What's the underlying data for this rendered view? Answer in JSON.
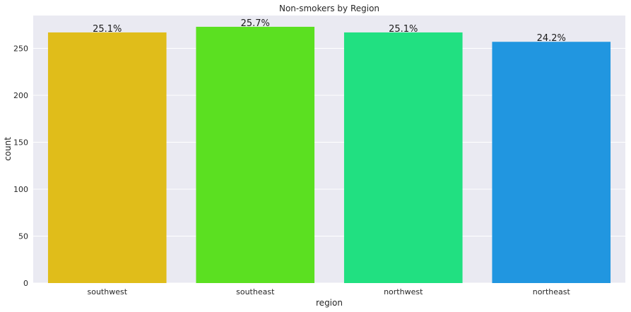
{
  "chart_data": {
    "type": "bar",
    "title": "Non-smokers by Region",
    "xlabel": "region",
    "ylabel": "count",
    "categories": [
      "southwest",
      "southeast",
      "northwest",
      "northeast"
    ],
    "values": [
      267,
      273,
      267,
      257
    ],
    "percent_labels": [
      "25.1%",
      "25.7%",
      "25.1%",
      "24.2%"
    ],
    "colors": [
      "#e0bd1a",
      "#5be021",
      "#21e081",
      "#2196e0"
    ],
    "ylim": [
      0,
      285
    ],
    "yticks": [
      0,
      50,
      100,
      150,
      200,
      250
    ],
    "grid": true,
    "background": "#eaeaf2"
  }
}
